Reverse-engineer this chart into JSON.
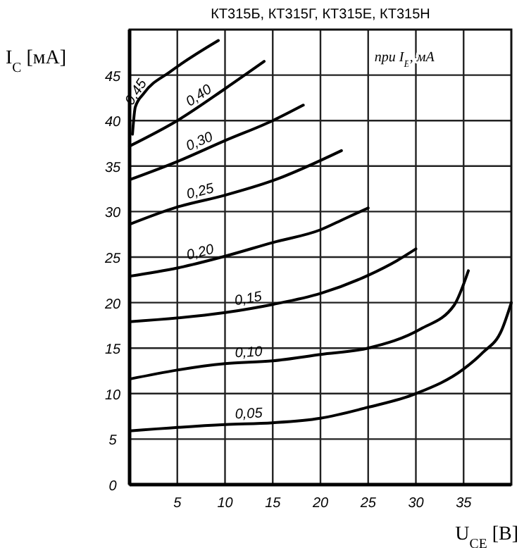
{
  "chart_data": {
    "type": "line",
    "title": "КТ315Б, КТ315Г, КТ315Е, КТ315Н",
    "xlabel": "U$_{CE}$ [В]",
    "ylabel": "I$_{C}$ [мА]",
    "annotations": [
      "при I$_{Б}$, мА"
    ],
    "xlim": [
      0,
      40
    ],
    "xticks": [
      5,
      10,
      15,
      20,
      25,
      30,
      35
    ],
    "ylim": [
      0,
      50
    ],
    "yticks": [
      0,
      5,
      10,
      15,
      20,
      25,
      30,
      35,
      40,
      45
    ],
    "grid": true,
    "marker": "none",
    "line_style": "solid",
    "series": [
      {
        "name": "0,45",
        "color": "#000000",
        "x": [
          0.3,
          0.6,
          1.5,
          4.3,
          9.3
        ],
        "values": [
          38.5,
          41.5,
          43,
          45.4,
          48.8
        ]
      },
      {
        "name": "0,40",
        "color": "#000000",
        "x": [
          0,
          5,
          10,
          14.1
        ],
        "values": [
          37.2,
          40,
          43.5,
          46.5
        ]
      },
      {
        "name": "0,30",
        "color": "#000000",
        "x": [
          0,
          5,
          10,
          15,
          18.2
        ],
        "values": [
          33.5,
          35.5,
          37.8,
          40,
          41.7
        ]
      },
      {
        "name": "0,25",
        "color": "#000000",
        "x": [
          0,
          5,
          10,
          15,
          22.2
        ],
        "values": [
          28.6,
          30.5,
          31.8,
          33.4,
          36.7
        ]
      },
      {
        "name": "0,20",
        "color": "#000000",
        "x": [
          0,
          5,
          10,
          15,
          20,
          22.5,
          25
        ],
        "values": [
          22.9,
          23.8,
          25.1,
          26.6,
          28,
          29.2,
          30.4
        ]
      },
      {
        "name": "0,15",
        "color": "#000000",
        "x": [
          0,
          10,
          15,
          20,
          25,
          28,
          30
        ],
        "values": [
          17.9,
          18.9,
          19.8,
          21,
          23,
          24.6,
          25.9
        ]
      },
      {
        "name": "0,10",
        "color": "#000000",
        "x": [
          0,
          10,
          15,
          20,
          25,
          30.5,
          34,
          35.5
        ],
        "values": [
          11.6,
          13.3,
          13.6,
          14.3,
          15,
          17.1,
          19.7,
          23.5
        ]
      },
      {
        "name": "0,05",
        "color": "#000000",
        "x": [
          0,
          10,
          15,
          20,
          25,
          30,
          35,
          37,
          39,
          40
        ],
        "values": [
          5.9,
          6.6,
          6.8,
          7.3,
          8.5,
          10,
          12.7,
          14.5,
          17,
          20
        ]
      }
    ]
  }
}
